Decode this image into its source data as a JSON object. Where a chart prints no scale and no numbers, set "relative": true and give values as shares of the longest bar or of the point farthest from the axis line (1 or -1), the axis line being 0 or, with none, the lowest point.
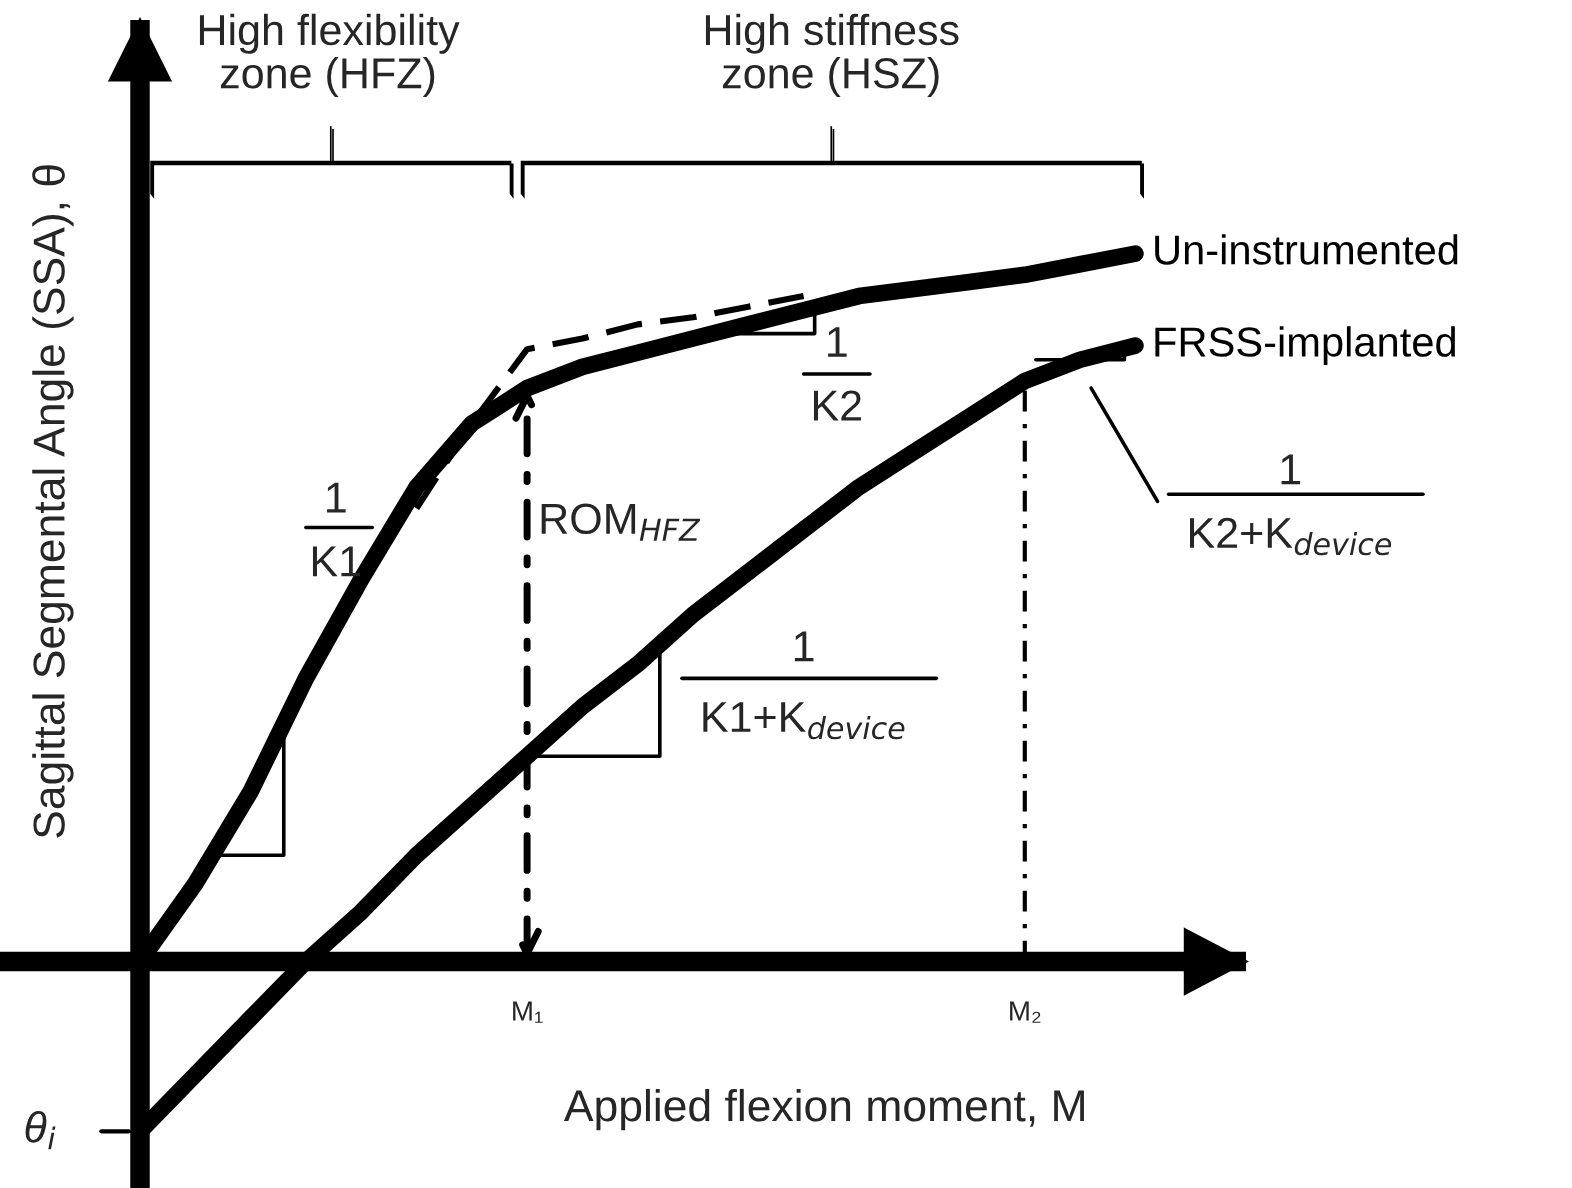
{
  "chart_data": {
    "type": "line",
    "relative": true,
    "xlabel": "Applied flexion moment, M",
    "ylabel": "Sagittal Segmental Angle (SSA), θ",
    "categories": [
      null,
      null,
      null,
      null,
      null,
      null,
      null,
      "M₁",
      null,
      null,
      null,
      null,
      null,
      null,
      null,
      null,
      "M₂",
      null,
      null,
      null,
      null
    ],
    "series": [
      {
        "name": "Un-instrumented",
        "color": "#000000",
        "values": [
          0,
          0.11,
          0.24,
          0.4,
          0.54,
          0.67,
          0.76,
          0.81,
          0.84,
          0.86,
          0.88,
          0.9,
          0.92,
          0.94,
          0.95,
          0.96,
          0.97,
          0.985,
          1.0,
          null,
          null
        ]
      },
      {
        "name": "FRSS-implanted",
        "color": "#000000",
        "values": [
          -0.24,
          -0.16,
          -0.08,
          0,
          0.07,
          0.15,
          0.22,
          0.29,
          0.36,
          0.42,
          0.49,
          0.55,
          0.61,
          0.67,
          0.72,
          0.77,
          0.82,
          0.85,
          0.87,
          null,
          null
        ]
      },
      {
        "color": "#000000",
        "line_style": "dashed",
        "values": [
          null,
          null,
          null,
          null,
          null,
          0.64,
          0.76,
          0.865,
          0.88,
          0.9,
          0.91,
          0.925,
          0.94,
          null,
          null,
          null,
          null,
          null,
          null,
          null,
          null
        ]
      }
    ],
    "annotations": [
      "1",
      "K1",
      "1",
      "K2",
      "1",
      "K1+K$_{device}$",
      "1",
      "K2+K$_{device}$",
      "ROM$_{HFZ}$",
      "High flexibility\nzone (HFZ)",
      "High stiffness\nzone (HSZ)",
      "θ$_{i}$"
    ]
  }
}
